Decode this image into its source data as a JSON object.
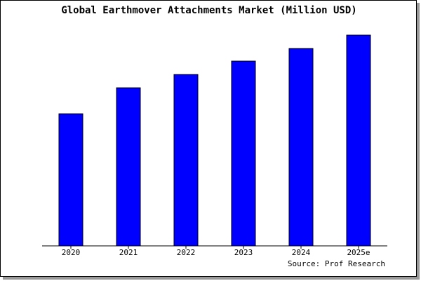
{
  "chart_data": {
    "type": "bar",
    "title": "Global Earthmover Attachments Market (Million USD)",
    "categories": [
      "2020",
      "2021",
      "2022",
      "2023",
      "2024",
      "2025e"
    ],
    "values": [
      188,
      225,
      244,
      263,
      281,
      300
    ],
    "color": "#0000ff",
    "source": "Source: Prof Research"
  }
}
